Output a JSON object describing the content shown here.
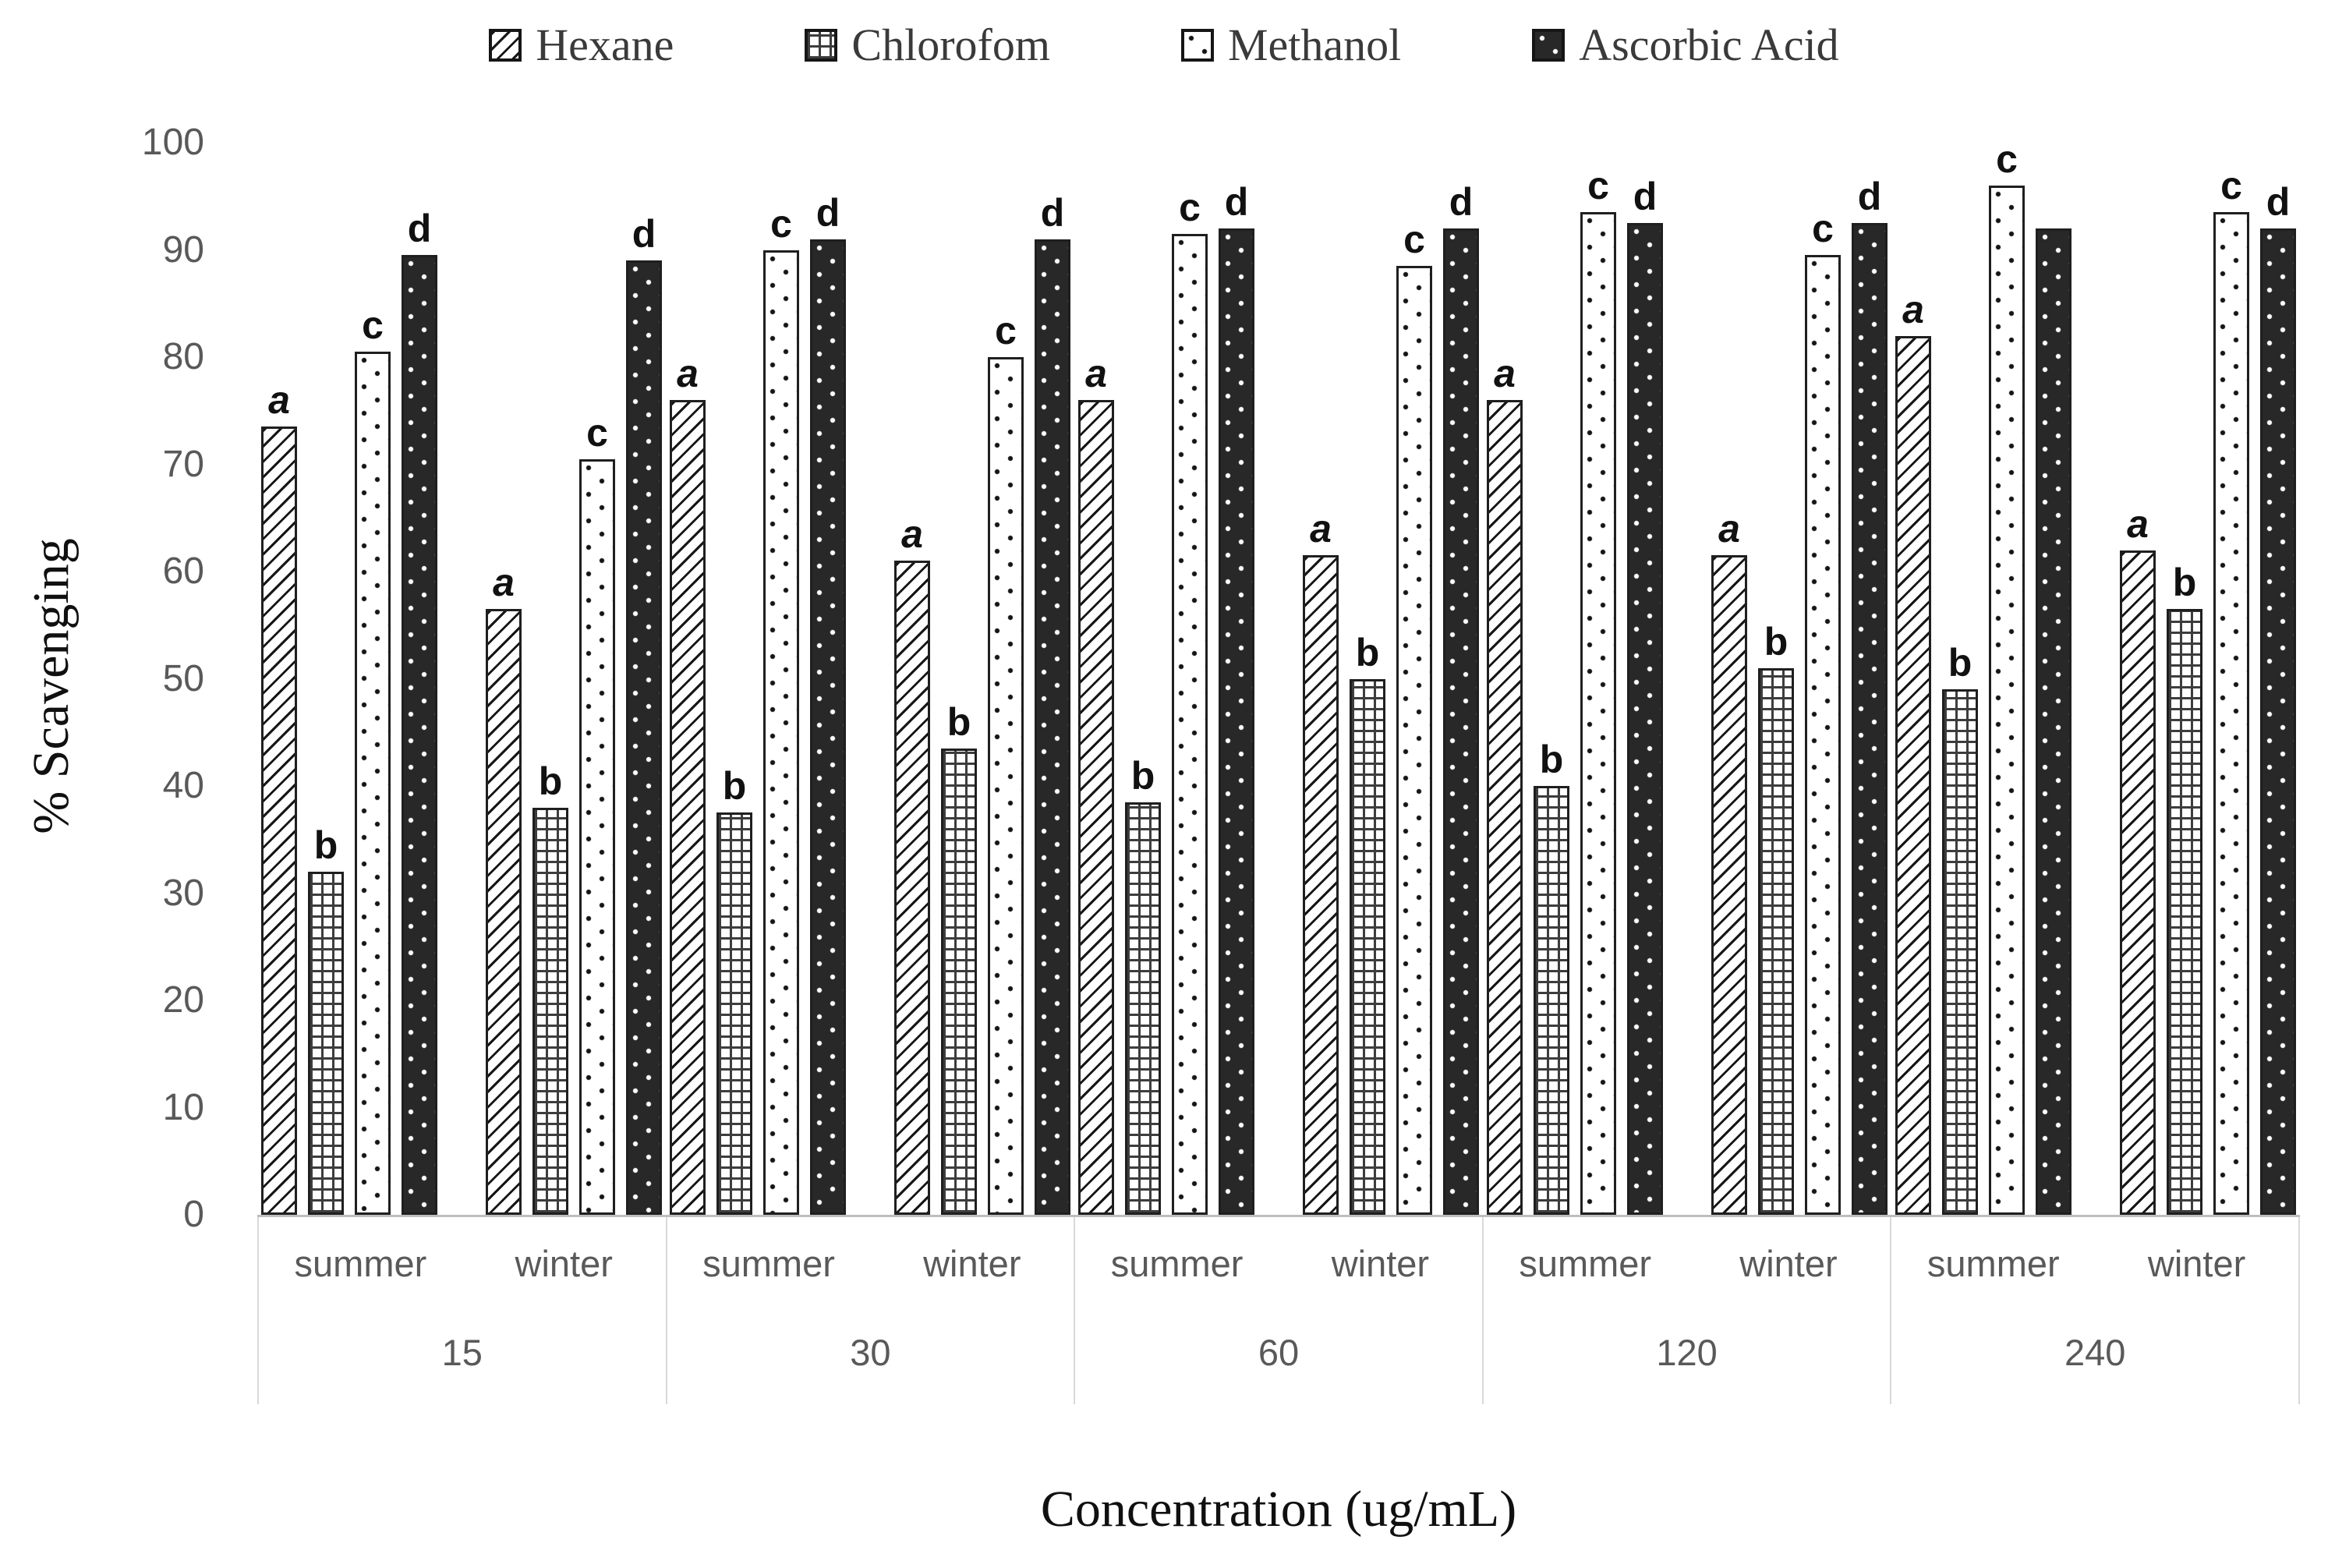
{
  "colors": {
    "background": "#ffffff",
    "tick_text": "#595959",
    "axis_line": "#bdbdbd",
    "table_divider": "#d9d9d9",
    "bar_outline": "#1f1f1f",
    "ascorbic_fill": "#282828",
    "legend_text": "#3a3a3a",
    "title_text": "#101010"
  },
  "legend": {
    "items": [
      {
        "label": "Hexane",
        "pattern": "hexane"
      },
      {
        "label": "Chlorofom",
        "pattern": "chlorofom"
      },
      {
        "label": "Methanol",
        "pattern": "methanol"
      },
      {
        "label": "Ascorbic Acid",
        "pattern": "ascorbic-acid"
      }
    ]
  },
  "chart_data": {
    "type": "bar",
    "title": "",
    "xlabel": "Concentration (ug/mL)",
    "ylabel": "% Scavenging",
    "ylim": [
      0,
      100
    ],
    "y_ticks": [
      0,
      10,
      20,
      30,
      40,
      50,
      60,
      70,
      80,
      90,
      100
    ],
    "grid": false,
    "legend_position": "top",
    "series_names": [
      "Hexane",
      "Chlorofom",
      "Methanol",
      "Ascorbic Acid"
    ],
    "groups": [
      {
        "concentration": "15",
        "subgroups": [
          {
            "season": "summer",
            "bars": [
              {
                "series": "Hexane",
                "value": 73.5,
                "letter": "a"
              },
              {
                "series": "Chlorofom",
                "value": 32,
                "letter": "b"
              },
              {
                "series": "Methanol",
                "value": 80.5,
                "letter": "c"
              },
              {
                "series": "Ascorbic Acid",
                "value": 89.5,
                "letter": "d"
              }
            ]
          },
          {
            "season": "winter",
            "bars": [
              {
                "series": "Hexane",
                "value": 56.5,
                "letter": "a"
              },
              {
                "series": "Chlorofom",
                "value": 38,
                "letter": "b"
              },
              {
                "series": "Methanol",
                "value": 70.5,
                "letter": "c"
              },
              {
                "series": "Ascorbic Acid",
                "value": 89,
                "letter": "d"
              }
            ]
          }
        ]
      },
      {
        "concentration": "30",
        "subgroups": [
          {
            "season": "summer",
            "bars": [
              {
                "series": "Hexane",
                "value": 76,
                "letter": "a"
              },
              {
                "series": "Chlorofom",
                "value": 37.5,
                "letter": "b"
              },
              {
                "series": "Methanol",
                "value": 90,
                "letter": "c"
              },
              {
                "series": "Ascorbic Acid",
                "value": 91,
                "letter": "d"
              }
            ]
          },
          {
            "season": "winter",
            "bars": [
              {
                "series": "Hexane",
                "value": 61,
                "letter": "a"
              },
              {
                "series": "Chlorofom",
                "value": 43.5,
                "letter": "b"
              },
              {
                "series": "Methanol",
                "value": 80,
                "letter": "c"
              },
              {
                "series": "Ascorbic Acid",
                "value": 91,
                "letter": "d"
              }
            ]
          }
        ]
      },
      {
        "concentration": "60",
        "subgroups": [
          {
            "season": "summer",
            "bars": [
              {
                "series": "Hexane",
                "value": 76,
                "letter": "a"
              },
              {
                "series": "Chlorofom",
                "value": 38.5,
                "letter": "b"
              },
              {
                "series": "Methanol",
                "value": 91.5,
                "letter": "c"
              },
              {
                "series": "Ascorbic Acid",
                "value": 92,
                "letter": "d"
              }
            ]
          },
          {
            "season": "winter",
            "bars": [
              {
                "series": "Hexane",
                "value": 61.5,
                "letter": "a"
              },
              {
                "series": "Chlorofom",
                "value": 50,
                "letter": "b"
              },
              {
                "series": "Methanol",
                "value": 88.5,
                "letter": "c"
              },
              {
                "series": "Ascorbic Acid",
                "value": 92,
                "letter": "d"
              }
            ]
          }
        ]
      },
      {
        "concentration": "120",
        "subgroups": [
          {
            "season": "summer",
            "bars": [
              {
                "series": "Hexane",
                "value": 76,
                "letter": "a"
              },
              {
                "series": "Chlorofom",
                "value": 40,
                "letter": "b"
              },
              {
                "series": "Methanol",
                "value": 93.5,
                "letter": "c"
              },
              {
                "series": "Ascorbic Acid",
                "value": 92.5,
                "letter": "d"
              }
            ]
          },
          {
            "season": "winter",
            "bars": [
              {
                "series": "Hexane",
                "value": 61.5,
                "letter": "a"
              },
              {
                "series": "Chlorofom",
                "value": 51,
                "letter": "b"
              },
              {
                "series": "Methanol",
                "value": 89.5,
                "letter": "c"
              },
              {
                "series": "Ascorbic Acid",
                "value": 92.5,
                "letter": "d"
              }
            ]
          }
        ]
      },
      {
        "concentration": "240",
        "subgroups": [
          {
            "season": "summer",
            "bars": [
              {
                "series": "Hexane",
                "value": 82,
                "letter": "a"
              },
              {
                "series": "Chlorofom",
                "value": 49,
                "letter": "b"
              },
              {
                "series": "Methanol",
                "value": 96,
                "letter": "c"
              },
              {
                "series": "Ascorbic Acid",
                "value": 92,
                "letter": ""
              }
            ]
          },
          {
            "season": "winter",
            "bars": [
              {
                "series": "Hexane",
                "value": 62,
                "letter": "a"
              },
              {
                "series": "Chlorofom",
                "value": 56.5,
                "letter": "b"
              },
              {
                "series": "Methanol",
                "value": 93.5,
                "letter": "c"
              },
              {
                "series": "Ascorbic Acid",
                "value": 92,
                "letter": "d"
              }
            ]
          }
        ]
      }
    ]
  }
}
